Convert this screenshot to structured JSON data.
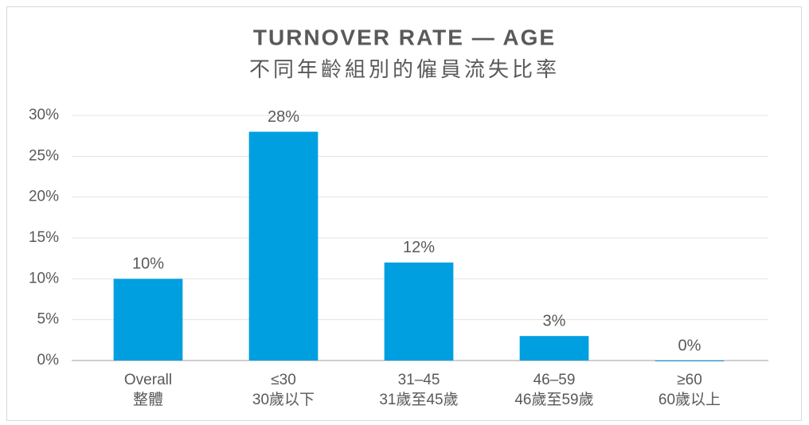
{
  "chart_data": {
    "type": "bar",
    "title": "TURNOVER RATE — AGE",
    "subtitle": "不同年齡組別的僱員流失比率",
    "categories": [
      [
        "Overall",
        "整體"
      ],
      [
        "≤30",
        "30歲以下"
      ],
      [
        "31–45",
        "31歲至45歲"
      ],
      [
        "46–59",
        "46歲至59歲"
      ],
      [
        "≥60",
        "60歲以上"
      ]
    ],
    "values": [
      10,
      28,
      12,
      3,
      0
    ],
    "value_labels": [
      "10%",
      "28%",
      "12%",
      "3%",
      "0%"
    ],
    "color": "#009fe0",
    "ylim": [
      0,
      30
    ],
    "yticks": [
      {
        "value": 0,
        "label": "0%"
      },
      {
        "value": 5,
        "label": "5%"
      },
      {
        "value": 10,
        "label": "10%"
      },
      {
        "value": 15,
        "label": "15%"
      },
      {
        "value": 20,
        "label": "20%"
      },
      {
        "value": 25,
        "label": "25%"
      },
      {
        "value": 30,
        "label": "30%"
      }
    ],
    "grid": true
  }
}
